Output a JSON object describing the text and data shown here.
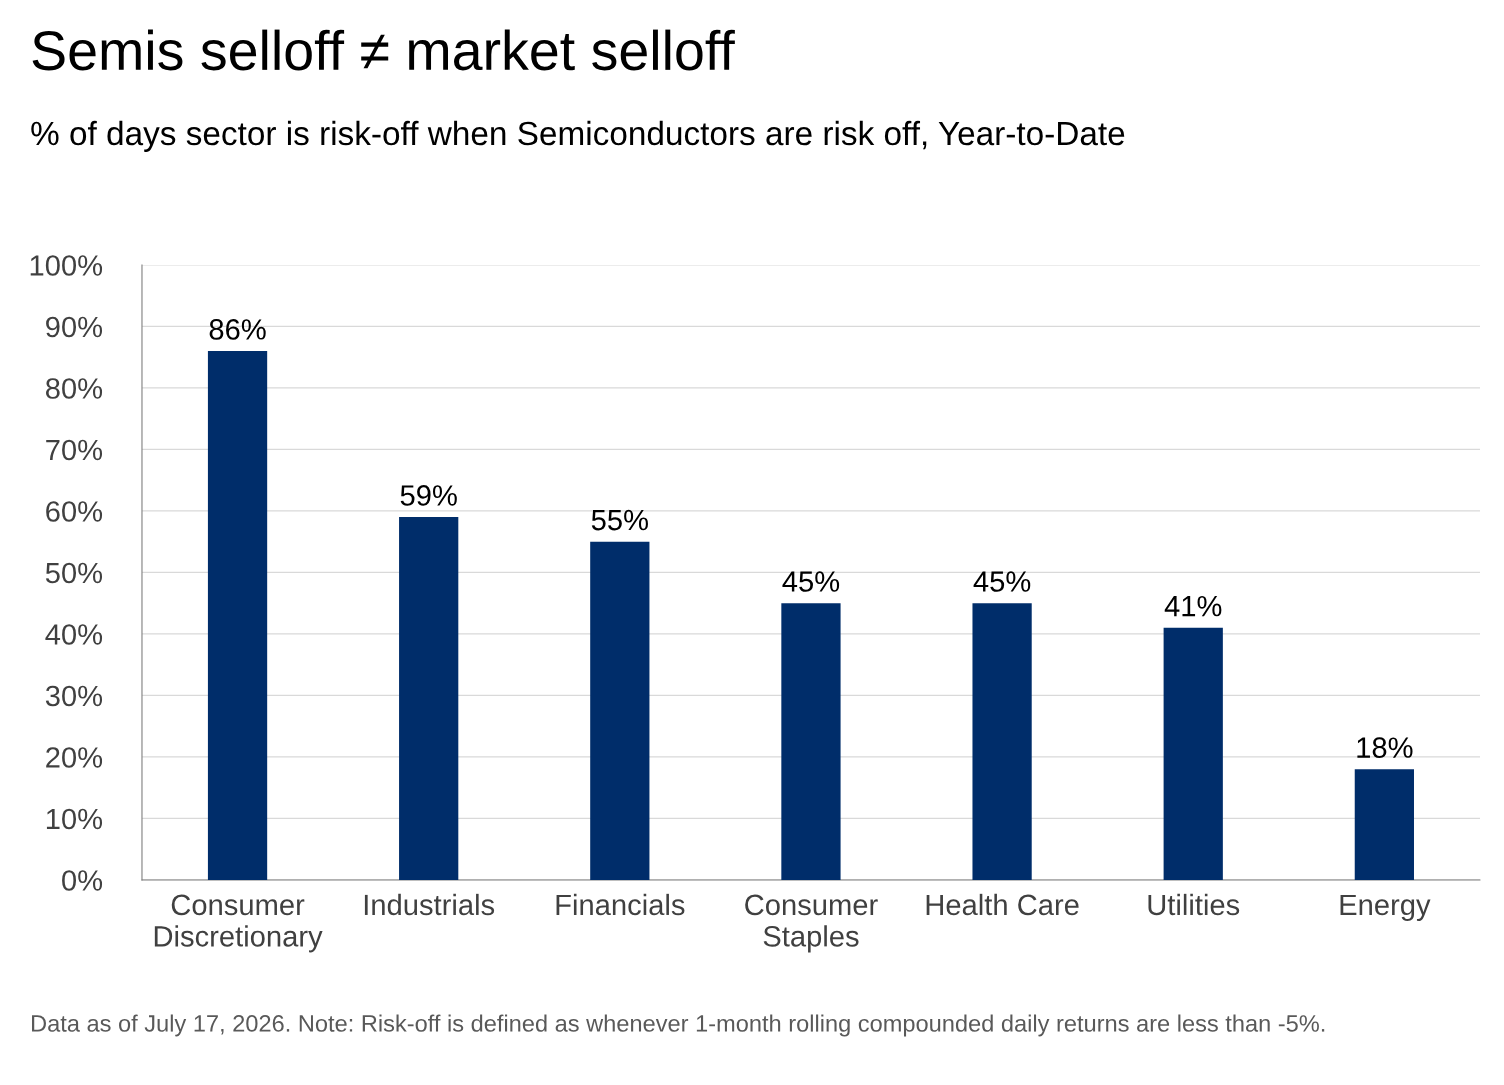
{
  "chart_data": {
    "type": "bar",
    "title": "Semis selloff ≠ market selloff",
    "subtitle": "% of days sector is risk-off when Semiconductors are risk off, Year-to-Date",
    "categories": [
      "Consumer Discretionary",
      "Industrials",
      "Financials",
      "Consumer Staples",
      "Health Care",
      "Utilities",
      "Energy"
    ],
    "values": [
      86,
      59,
      55,
      45,
      45,
      41,
      18
    ],
    "color": "#002d6a",
    "data_labels": true,
    "value_labels": [
      "86%",
      "59%",
      "55%",
      "45%",
      "45%",
      "41%",
      "18%"
    ],
    "ylim": [
      0,
      100
    ],
    "yticks": [
      {
        "value": 0,
        "label": "0%"
      },
      {
        "value": 10,
        "label": "10%"
      },
      {
        "value": 20,
        "label": "20%"
      },
      {
        "value": 30,
        "label": "30%"
      },
      {
        "value": 40,
        "label": "40%"
      },
      {
        "value": 50,
        "label": "50%"
      },
      {
        "value": 60,
        "label": "60%"
      },
      {
        "value": 70,
        "label": "70%"
      },
      {
        "value": 80,
        "label": "80%"
      },
      {
        "value": 90,
        "label": "90%"
      },
      {
        "value": 100,
        "label": "100%"
      }
    ],
    "grid": "y",
    "annotations": [
      "Data as of July 17, 2026. Note: Risk-off is defined as whenever 1-month rolling compounded daily returns are less than -5%."
    ]
  }
}
